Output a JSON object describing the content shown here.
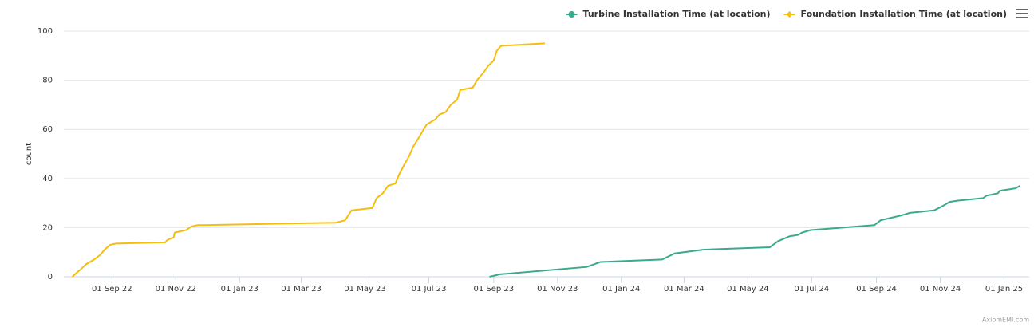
{
  "chart_data": {
    "type": "line",
    "ylabel": "count",
    "credit": "AxiomEMI.com",
    "xlim": [
      "2022-07-17",
      "2025-01-25"
    ],
    "xticks": [
      {
        "value": "2022-09-01",
        "label": "01 Sep 22"
      },
      {
        "value": "2022-11-01",
        "label": "01 Nov 22"
      },
      {
        "value": "2023-01-01",
        "label": "01 Jan 23"
      },
      {
        "value": "2023-03-01",
        "label": "01 Mar 23"
      },
      {
        "value": "2023-05-01",
        "label": "01 May 23"
      },
      {
        "value": "2023-07-01",
        "label": "01 Jul 23"
      },
      {
        "value": "2023-09-01",
        "label": "01 Sep 23"
      },
      {
        "value": "2023-11-01",
        "label": "01 Nov 23"
      },
      {
        "value": "2024-01-01",
        "label": "01 Jan 24"
      },
      {
        "value": "2024-03-01",
        "label": "01 Mar 24"
      },
      {
        "value": "2024-05-01",
        "label": "01 May 24"
      },
      {
        "value": "2024-07-01",
        "label": "01 Jul 24"
      },
      {
        "value": "2024-09-01",
        "label": "01 Sep 24"
      },
      {
        "value": "2024-11-01",
        "label": "01 Nov 24"
      },
      {
        "value": "2025-01-01",
        "label": "01 Jan 25"
      }
    ],
    "ylim": [
      0,
      100
    ],
    "yticks": [
      0,
      20,
      40,
      60,
      80,
      100
    ],
    "grid": true,
    "series": [
      {
        "name": "Turbine Installation Time (at location)",
        "color": "#3aaa8c",
        "marker": "circle",
        "x": [
          "2023-08-28",
          "2023-09-07",
          "2023-11-29",
          "2023-12-12",
          "2024-02-09",
          "2024-02-21",
          "2024-03-19",
          "2024-05-22",
          "2024-05-30",
          "2024-06-10",
          "2024-06-18",
          "2024-06-22",
          "2024-06-30",
          "2024-08-30",
          "2024-09-05",
          "2024-09-25",
          "2024-10-03",
          "2024-10-26",
          "2024-11-02",
          "2024-11-10",
          "2024-11-18",
          "2024-12-12",
          "2024-12-15",
          "2024-12-26",
          "2024-12-28",
          "2025-01-12",
          "2025-01-16"
        ],
        "values": [
          0,
          1,
          4,
          6,
          7,
          9.5,
          11,
          12,
          14.5,
          16.5,
          17,
          18,
          19,
          21,
          23,
          25,
          26,
          27,
          28.5,
          30.5,
          31,
          32,
          33,
          34,
          35,
          36,
          37
        ]
      },
      {
        "name": "Foundation Installation Time (at location)",
        "color": "#f5be0f",
        "marker": "diamond",
        "x": [
          "2022-07-25",
          "2022-08-02",
          "2022-08-07",
          "2022-08-15",
          "2022-08-21",
          "2022-08-25",
          "2022-08-30",
          "2022-09-05",
          "2022-10-22",
          "2022-10-24",
          "2022-10-30",
          "2022-10-31",
          "2022-11-11",
          "2022-11-16",
          "2022-11-22",
          "2023-04-03",
          "2023-04-12",
          "2023-04-18",
          "2023-05-08",
          "2023-05-12",
          "2023-05-18",
          "2023-05-23",
          "2023-05-30",
          "2023-06-03",
          "2023-06-08",
          "2023-06-12",
          "2023-06-16",
          "2023-06-22",
          "2023-06-26",
          "2023-06-29",
          "2023-07-07",
          "2023-07-11",
          "2023-07-17",
          "2023-07-22",
          "2023-07-28",
          "2023-07-31",
          "2023-08-12",
          "2023-08-16",
          "2023-08-22",
          "2023-08-27",
          "2023-09-01",
          "2023-09-04",
          "2023-09-08",
          "2023-10-20"
        ],
        "values": [
          0,
          3,
          5,
          7,
          9,
          11,
          13,
          13.5,
          14,
          15,
          16,
          18,
          19,
          20.5,
          21,
          22,
          23,
          27,
          28,
          32,
          34,
          37,
          38,
          42,
          46,
          49,
          53,
          57,
          60,
          62,
          64,
          66,
          67,
          70,
          72,
          76,
          77,
          80,
          83,
          86,
          88,
          92,
          94,
          95
        ]
      }
    ]
  }
}
